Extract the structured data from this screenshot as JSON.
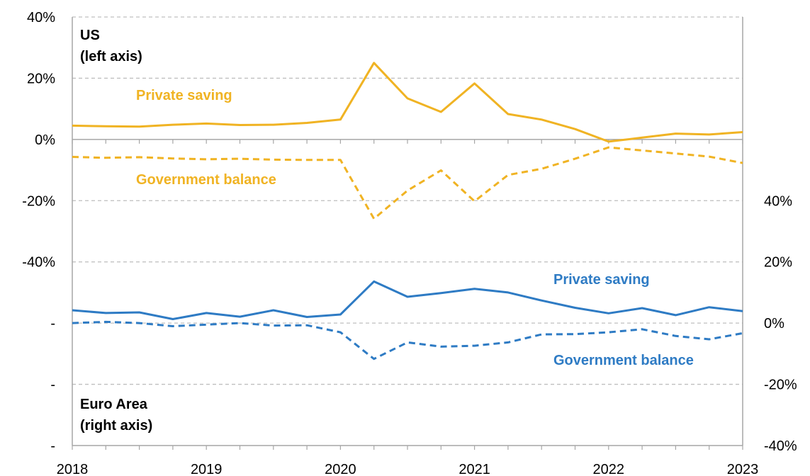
{
  "chart_data": {
    "type": "line",
    "x_ticks": [
      "2018",
      "2019",
      "2020",
      "2021",
      "2022",
      "2023"
    ],
    "left_axis": {
      "range": [
        -100,
        40
      ],
      "tick_values": [
        40,
        20,
        0,
        -20,
        -40,
        -60,
        -80,
        -100
      ],
      "tick_labels": [
        "40%",
        "20%",
        "0%",
        "-20%",
        "-40%",
        "-",
        "-",
        "-"
      ]
    },
    "right_axis": {
      "range": [
        -40,
        100
      ],
      "tick_values": [
        40,
        20,
        0,
        -20,
        -40
      ],
      "tick_labels": [
        "40%",
        "20%",
        "0%",
        "-20%",
        "-40%"
      ]
    },
    "panels": {
      "us": {
        "title_line1": "US",
        "title_line2": "(left axis)"
      },
      "ea": {
        "title_line1": "Euro Area",
        "title_line2": "(right axis)"
      }
    },
    "colors": {
      "us": "#f0b323",
      "ea": "#2e7bc4",
      "grid": "#bfbfbf",
      "axis": "#a6a6a6"
    },
    "x": [
      "2018-01",
      "2018-04",
      "2018-07",
      "2018-10",
      "2019-01",
      "2019-04",
      "2019-07",
      "2019-10",
      "2020-01",
      "2020-04",
      "2020-07",
      "2020-10",
      "2021-01",
      "2021-04",
      "2021-07",
      "2021-10",
      "2022-01",
      "2022-04",
      "2022-07",
      "2022-10",
      "2023-01"
    ],
    "series": [
      {
        "name": "Private saving",
        "region": "US",
        "axis": "left",
        "style": "solid",
        "values": [
          4.5,
          4.3,
          4.2,
          4.8,
          5.2,
          4.7,
          4.8,
          5.4,
          6.5,
          25,
          13.4,
          9,
          18.3,
          8.3,
          6.5,
          3.4,
          -0.7,
          0.6,
          1.9,
          1.6,
          2.4
        ]
      },
      {
        "name": "Government balance",
        "region": "US",
        "axis": "left",
        "style": "dashed",
        "values": [
          -5.7,
          -6.0,
          -5.8,
          -6.2,
          -6.5,
          -6.3,
          -6.6,
          -6.7,
          -6.7,
          -25.9,
          -16.7,
          -10.1,
          -20.2,
          -11.6,
          -9.6,
          -6.3,
          -2.6,
          -3.6,
          -4.6,
          -5.6,
          -7.7
        ]
      },
      {
        "name": "Private saving",
        "region": "Euro Area",
        "axis": "right",
        "style": "solid",
        "values": [
          4.2,
          3.3,
          3.5,
          1.3,
          3.3,
          2.1,
          4.2,
          2.0,
          2.8,
          13.6,
          8.6,
          9.8,
          11.2,
          10.0,
          7.4,
          5.0,
          3.2,
          4.9,
          2.6,
          5.2,
          3.9
        ]
      },
      {
        "name": "Government balance",
        "region": "Euro Area",
        "axis": "right",
        "style": "dashed",
        "values": [
          0.0,
          0.4,
          0.0,
          -1.0,
          -0.5,
          0.0,
          -0.8,
          -0.7,
          -3.0,
          -11.7,
          -6.3,
          -7.7,
          -7.4,
          -6.3,
          -3.7,
          -3.6,
          -3.0,
          -2.0,
          -4.2,
          -5.3,
          -3.3
        ]
      }
    ],
    "annotations": {
      "us_private": "Private saving",
      "us_government": "Government balance",
      "ea_private": "Private saving",
      "ea_government": "Government balance"
    },
    "grid": true
  }
}
